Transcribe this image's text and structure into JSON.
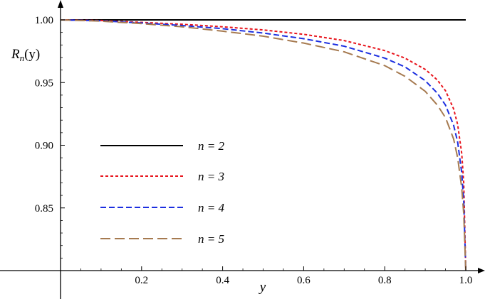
{
  "chart_data": {
    "type": "line",
    "xlabel": "y",
    "ylabel": "R",
    "ylabel_sub": "n",
    "ylabel_arg": "(y)",
    "xlim": [
      0,
      1
    ],
    "ylim": [
      0.8,
      1.0
    ],
    "x_ticks": [
      {
        "value": 0.2,
        "label": "0.2"
      },
      {
        "value": 0.4,
        "label": "0.4"
      },
      {
        "value": 0.6,
        "label": "0.6"
      },
      {
        "value": 0.8,
        "label": "0.8"
      },
      {
        "value": 1.0,
        "label": "1.0"
      }
    ],
    "y_ticks": [
      {
        "value": 0.85,
        "label": "0.85"
      },
      {
        "value": 0.9,
        "label": "0.90"
      },
      {
        "value": 0.95,
        "label": "0.95"
      },
      {
        "value": 1.0,
        "label": "1.00"
      }
    ],
    "grid": false,
    "legend_position": "left-middle",
    "series": [
      {
        "name": "n = 2",
        "color": "#000000",
        "dash": "none",
        "points": [
          [
            0,
            1.0
          ],
          [
            0.5,
            1.0
          ],
          [
            1.0,
            1.0
          ]
        ]
      },
      {
        "name": "n = 3",
        "color": "#e8141c",
        "dash": "4 3",
        "points": [
          [
            0,
            1.0
          ],
          [
            0.1,
            0.9995
          ],
          [
            0.2,
            0.998
          ],
          [
            0.3,
            0.9965
          ],
          [
            0.4,
            0.9945
          ],
          [
            0.5,
            0.992
          ],
          [
            0.6,
            0.9885
          ],
          [
            0.7,
            0.9835
          ],
          [
            0.8,
            0.9755
          ],
          [
            0.85,
            0.9695
          ],
          [
            0.9,
            0.9605
          ],
          [
            0.93,
            0.952
          ],
          [
            0.95,
            0.9435
          ],
          [
            0.97,
            0.929
          ],
          [
            0.98,
            0.9165
          ],
          [
            0.99,
            0.8935
          ],
          [
            0.995,
            0.87
          ],
          [
            1.0,
            0.8
          ]
        ]
      },
      {
        "name": "n = 4",
        "color": "#1c2fe0",
        "dash": "8 4",
        "points": [
          [
            0,
            1.0
          ],
          [
            0.1,
            0.9993
          ],
          [
            0.2,
            0.9975
          ],
          [
            0.3,
            0.9955
          ],
          [
            0.4,
            0.993
          ],
          [
            0.5,
            0.9895
          ],
          [
            0.6,
            0.985
          ],
          [
            0.7,
            0.979
          ],
          [
            0.8,
            0.9695
          ],
          [
            0.85,
            0.9625
          ],
          [
            0.9,
            0.9515
          ],
          [
            0.93,
            0.9415
          ],
          [
            0.95,
            0.932
          ],
          [
            0.97,
            0.916
          ],
          [
            0.98,
            0.9025
          ],
          [
            0.99,
            0.878
          ],
          [
            0.995,
            0.855
          ],
          [
            1.0,
            0.8
          ]
        ]
      },
      {
        "name": "n = 5",
        "color": "#a67a50",
        "dash": "14 6",
        "points": [
          [
            0,
            1.0
          ],
          [
            0.1,
            0.999
          ],
          [
            0.2,
            0.997
          ],
          [
            0.3,
            0.9945
          ],
          [
            0.4,
            0.991
          ],
          [
            0.5,
            0.987
          ],
          [
            0.6,
            0.9815
          ],
          [
            0.7,
            0.9745
          ],
          [
            0.8,
            0.9635
          ],
          [
            0.85,
            0.955
          ],
          [
            0.9,
            0.943
          ],
          [
            0.93,
            0.932
          ],
          [
            0.95,
            0.922
          ],
          [
            0.97,
            0.905
          ],
          [
            0.98,
            0.89
          ],
          [
            0.99,
            0.866
          ],
          [
            0.995,
            0.845
          ],
          [
            1.0,
            0.8
          ]
        ]
      }
    ]
  }
}
